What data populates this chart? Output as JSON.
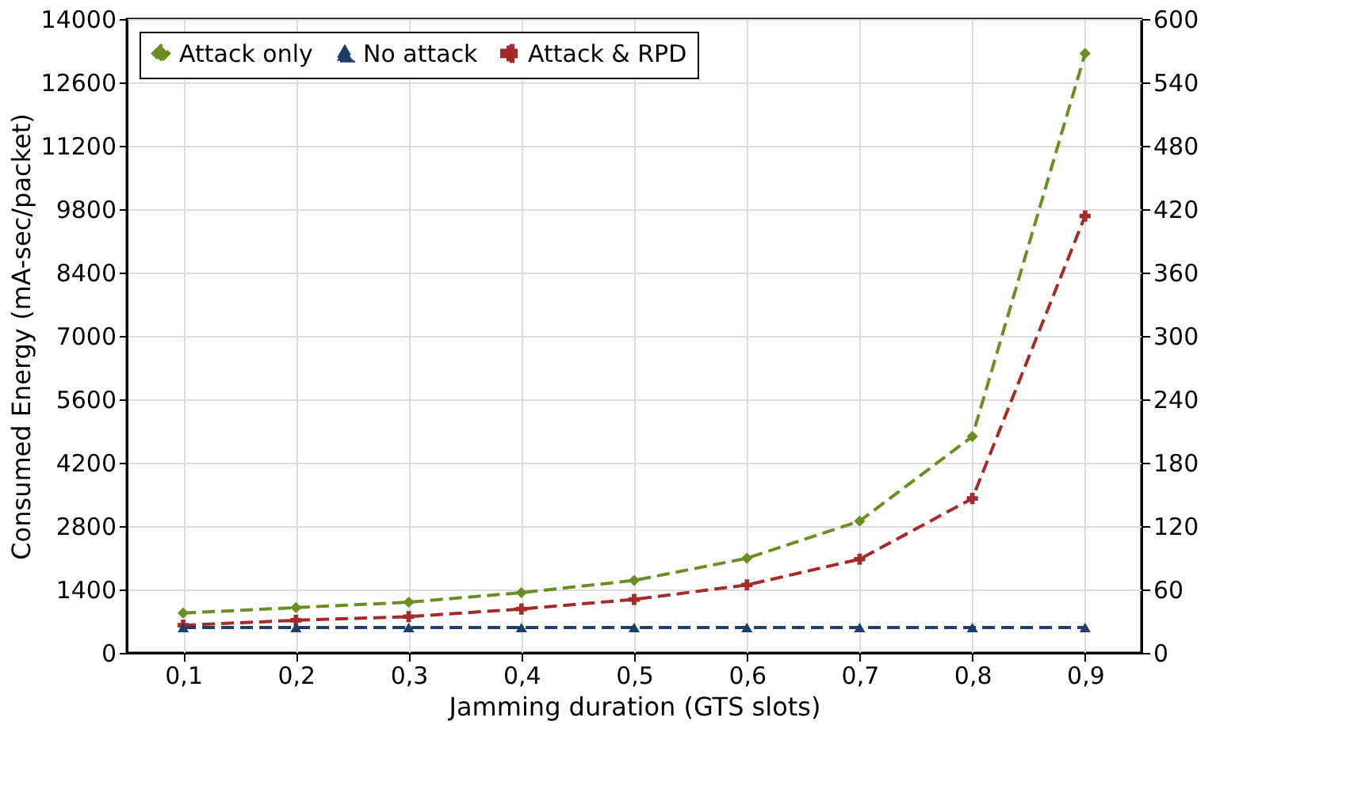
{
  "chart_data": {
    "type": "line",
    "xlabel": "Jamming duration (GTS slots)",
    "ylabel": "Consumed Energy (mA-sec/packet)",
    "categories": [
      "0,1",
      "0,2",
      "0,3",
      "0,4",
      "0,5",
      "0,6",
      "0,7",
      "0,8",
      "0,9"
    ],
    "series": [
      {
        "name": "Attack only",
        "color": "#6b8e23",
        "marker": "diamond",
        "line_style": "dashed",
        "values": [
          880,
          1000,
          1120,
          1330,
          1600,
          2090,
          2910,
          4780,
          13240
        ]
      },
      {
        "name": "No attack",
        "color": "#1f3d6b",
        "marker": "triangle",
        "line_style": "dashed",
        "axis": "y2",
        "values": [
          24,
          24,
          24,
          24,
          24,
          24,
          24,
          24,
          24
        ]
      },
      {
        "name": "Attack & RPD",
        "color": "#a52a2a",
        "marker": "cross",
        "line_style": "dashed",
        "values": [
          610,
          720,
          800,
          970,
          1180,
          1500,
          2070,
          3410,
          9650
        ]
      }
    ],
    "ylim": [
      0,
      14000
    ],
    "yticks": [
      0,
      1400,
      2800,
      4200,
      5600,
      7000,
      8400,
      9800,
      11200,
      12600,
      14000
    ],
    "y2lim": [
      0,
      600
    ],
    "y2ticks": [
      0,
      60,
      120,
      180,
      240,
      300,
      360,
      420,
      480,
      540,
      600
    ],
    "grid": true,
    "legend": "top left"
  }
}
